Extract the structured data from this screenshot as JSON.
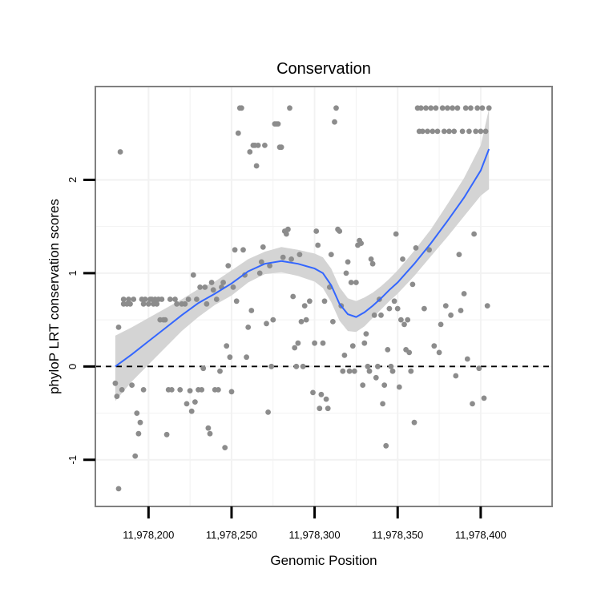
{
  "chart_data": {
    "type": "scatter",
    "title": "Conservation",
    "xlabel": "Genomic Position",
    "ylabel": "phyloP LRT conservation scores",
    "xlim": [
      11978168,
      11978443
    ],
    "ylim": [
      -1.5,
      3.0
    ],
    "x_ticks": [
      11978200,
      11978250,
      11978300,
      11978350,
      11978400
    ],
    "x_tick_labels": [
      "11,978,200",
      "11,978,250",
      "11,978,300",
      "11,978,350",
      "11,978,400"
    ],
    "y_ticks": [
      -1,
      0,
      1,
      2
    ],
    "y_tick_labels": [
      "-1",
      "0",
      "1",
      "2"
    ],
    "grid": true,
    "reference_line": {
      "y": 0,
      "style": "dashed",
      "color": "#000000"
    },
    "colors": {
      "points": "#8c8c8c",
      "smooth": "#3366ff",
      "band": "#d4d4d4",
      "panel_border": "#808080",
      "grid": "#f2f2f2"
    },
    "points": [
      [
        11978180,
        -0.18
      ],
      [
        11978181,
        -0.32
      ],
      [
        11978182,
        0.42
      ],
      [
        11978182,
        -1.31
      ],
      [
        11978183,
        2.3
      ],
      [
        11978184,
        -0.25
      ],
      [
        11978185,
        0.67
      ],
      [
        11978185,
        0.72
      ],
      [
        11978187,
        0.67
      ],
      [
        11978188,
        0.72
      ],
      [
        11978189,
        0.67
      ],
      [
        11978190,
        -0.2
      ],
      [
        11978191,
        0.72
      ],
      [
        11978192,
        -0.96
      ],
      [
        11978193,
        -0.5
      ],
      [
        11978194,
        -0.72
      ],
      [
        11978195,
        -0.6
      ],
      [
        11978196,
        0.72
      ],
      [
        11978197,
        -0.25
      ],
      [
        11978197,
        0.67
      ],
      [
        11978198,
        0.72
      ],
      [
        11978200,
        0.67
      ],
      [
        11978201,
        0.72
      ],
      [
        11978202,
        0.72
      ],
      [
        11978203,
        0.67
      ],
      [
        11978204,
        0.72
      ],
      [
        11978205,
        0.67
      ],
      [
        11978206,
        0.72
      ],
      [
        11978207,
        0.5
      ],
      [
        11978208,
        0.72
      ],
      [
        11978209,
        0.5
      ],
      [
        11978210,
        0.5
      ],
      [
        11978211,
        -0.73
      ],
      [
        11978212,
        -0.25
      ],
      [
        11978213,
        0.72
      ],
      [
        11978214,
        -0.25
      ],
      [
        11978216,
        0.72
      ],
      [
        11978217,
        0.67
      ],
      [
        11978219,
        -0.25
      ],
      [
        11978220,
        0.67
      ],
      [
        11978222,
        0.67
      ],
      [
        11978223,
        -0.4
      ],
      [
        11978224,
        0.72
      ],
      [
        11978225,
        -0.26
      ],
      [
        11978226,
        -0.48
      ],
      [
        11978227,
        0.98
      ],
      [
        11978228,
        -0.38
      ],
      [
        11978229,
        0.72
      ],
      [
        11978230,
        -0.25
      ],
      [
        11978231,
        0.85
      ],
      [
        11978232,
        -0.25
      ],
      [
        11978233,
        -0.02
      ],
      [
        11978234,
        0.85
      ],
      [
        11978235,
        0.67
      ],
      [
        11978236,
        -0.66
      ],
      [
        11978237,
        -0.72
      ],
      [
        11978238,
        0.9
      ],
      [
        11978239,
        0.82
      ],
      [
        11978240,
        -0.25
      ],
      [
        11978241,
        0.72
      ],
      [
        11978242,
        -0.25
      ],
      [
        11978243,
        -0.05
      ],
      [
        11978244,
        0.85
      ],
      [
        11978245,
        0.9
      ],
      [
        11978246,
        -0.87
      ],
      [
        11978247,
        0.22
      ],
      [
        11978248,
        1.08
      ],
      [
        11978249,
        0.1
      ],
      [
        11978250,
        -0.27
      ],
      [
        11978251,
        0.85
      ],
      [
        11978252,
        1.25
      ],
      [
        11978253,
        0.7
      ],
      [
        11978254,
        2.5
      ],
      [
        11978255,
        2.77
      ],
      [
        11978256,
        2.77
      ],
      [
        11978257,
        1.25
      ],
      [
        11978258,
        0.98
      ],
      [
        11978259,
        0.1
      ],
      [
        11978260,
        0.42
      ],
      [
        11978261,
        2.3
      ],
      [
        11978262,
        0.6
      ],
      [
        11978263,
        2.37
      ],
      [
        11978264,
        2.37
      ],
      [
        11978265,
        2.15
      ],
      [
        11978266,
        2.37
      ],
      [
        11978267,
        1.0
      ],
      [
        11978268,
        1.12
      ],
      [
        11978269,
        1.28
      ],
      [
        11978270,
        2.37
      ],
      [
        11978271,
        0.46
      ],
      [
        11978272,
        -0.49
      ],
      [
        11978273,
        1.08
      ],
      [
        11978274,
        0.0
      ],
      [
        11978275,
        0.5
      ],
      [
        11978276,
        2.6
      ],
      [
        11978277,
        2.6
      ],
      [
        11978278,
        2.6
      ],
      [
        11978279,
        2.35
      ],
      [
        11978280,
        2.35
      ],
      [
        11978281,
        1.17
      ],
      [
        11978282,
        1.45
      ],
      [
        11978283,
        1.42
      ],
      [
        11978284,
        1.47
      ],
      [
        11978285,
        2.77
      ],
      [
        11978286,
        1.15
      ],
      [
        11978287,
        0.75
      ],
      [
        11978288,
        0.2
      ],
      [
        11978289,
        0.0
      ],
      [
        11978290,
        0.25
      ],
      [
        11978291,
        1.2
      ],
      [
        11978292,
        0.48
      ],
      [
        11978293,
        0.0
      ],
      [
        11978294,
        0.65
      ],
      [
        11978295,
        0.5
      ],
      [
        11978297,
        0.7
      ],
      [
        11978299,
        -0.28
      ],
      [
        11978300,
        0.25
      ],
      [
        11978301,
        1.45
      ],
      [
        11978302,
        1.3
      ],
      [
        11978303,
        -0.45
      ],
      [
        11978304,
        -0.3
      ],
      [
        11978305,
        0.25
      ],
      [
        11978306,
        0.7
      ],
      [
        11978307,
        -0.35
      ],
      [
        11978308,
        -0.45
      ],
      [
        11978309,
        0.85
      ],
      [
        11978310,
        1.2
      ],
      [
        11978311,
        0.48
      ],
      [
        11978312,
        2.62
      ],
      [
        11978313,
        2.77
      ],
      [
        11978314,
        1.47
      ],
      [
        11978315,
        1.45
      ],
      [
        11978316,
        0.65
      ],
      [
        11978317,
        -0.05
      ],
      [
        11978318,
        0.12
      ],
      [
        11978319,
        1.0
      ],
      [
        11978320,
        1.12
      ],
      [
        11978321,
        -0.05
      ],
      [
        11978322,
        0.9
      ],
      [
        11978323,
        0.22
      ],
      [
        11978324,
        -0.05
      ],
      [
        11978325,
        0.9
      ],
      [
        11978326,
        1.3
      ],
      [
        11978327,
        1.35
      ],
      [
        11978328,
        1.32
      ],
      [
        11978329,
        -0.2
      ],
      [
        11978330,
        0.25
      ],
      [
        11978331,
        0.35
      ],
      [
        11978332,
        0.0
      ],
      [
        11978333,
        -0.05
      ],
      [
        11978334,
        1.15
      ],
      [
        11978335,
        1.1
      ],
      [
        11978336,
        0.55
      ],
      [
        11978337,
        -0.12
      ],
      [
        11978338,
        0.0
      ],
      [
        11978339,
        0.72
      ],
      [
        11978340,
        0.55
      ],
      [
        11978341,
        -0.4
      ],
      [
        11978342,
        -0.2
      ],
      [
        11978343,
        -0.85
      ],
      [
        11978344,
        0.18
      ],
      [
        11978345,
        0.62
      ],
      [
        11978346,
        0.0
      ],
      [
        11978347,
        -0.05
      ],
      [
        11978348,
        0.7
      ],
      [
        11978349,
        1.42
      ],
      [
        11978350,
        0.62
      ],
      [
        11978351,
        -0.22
      ],
      [
        11978352,
        0.5
      ],
      [
        11978353,
        1.15
      ],
      [
        11978354,
        0.45
      ],
      [
        11978355,
        0.18
      ],
      [
        11978356,
        0.5
      ],
      [
        11978357,
        0.15
      ],
      [
        11978358,
        -0.05
      ],
      [
        11978359,
        0.88
      ],
      [
        11978360,
        -0.6
      ],
      [
        11978361,
        1.27
      ],
      [
        11978362,
        2.77
      ],
      [
        11978363,
        2.52
      ],
      [
        11978364,
        2.77
      ],
      [
        11978365,
        2.52
      ],
      [
        11978366,
        0.62
      ],
      [
        11978367,
        2.77
      ],
      [
        11978368,
        2.52
      ],
      [
        11978369,
        1.25
      ],
      [
        11978370,
        2.77
      ],
      [
        11978371,
        2.52
      ],
      [
        11978372,
        0.22
      ],
      [
        11978373,
        2.77
      ],
      [
        11978374,
        2.52
      ],
      [
        11978375,
        0.15
      ],
      [
        11978376,
        0.45
      ],
      [
        11978377,
        2.77
      ],
      [
        11978378,
        2.52
      ],
      [
        11978379,
        0.65
      ],
      [
        11978380,
        2.77
      ],
      [
        11978381,
        2.52
      ],
      [
        11978382,
        0.55
      ],
      [
        11978383,
        2.77
      ],
      [
        11978384,
        2.52
      ],
      [
        11978385,
        -0.1
      ],
      [
        11978386,
        2.77
      ],
      [
        11978387,
        1.2
      ],
      [
        11978388,
        0.6
      ],
      [
        11978389,
        2.52
      ],
      [
        11978390,
        0.78
      ],
      [
        11978391,
        2.77
      ],
      [
        11978392,
        0.08
      ],
      [
        11978393,
        2.52
      ],
      [
        11978394,
        2.77
      ],
      [
        11978395,
        -0.4
      ],
      [
        11978396,
        1.42
      ],
      [
        11978397,
        2.52
      ],
      [
        11978398,
        2.77
      ],
      [
        11978399,
        -0.02
      ],
      [
        11978400,
        2.52
      ],
      [
        11978401,
        2.77
      ],
      [
        11978402,
        -0.34
      ],
      [
        11978403,
        2.52
      ],
      [
        11978404,
        0.65
      ],
      [
        11978405,
        2.77
      ]
    ],
    "smooth": {
      "x": [
        11978180,
        11978190,
        11978200,
        11978210,
        11978220,
        11978230,
        11978240,
        11978250,
        11978260,
        11978270,
        11978280,
        11978290,
        11978300,
        11978305,
        11978310,
        11978315,
        11978320,
        11978325,
        11978330,
        11978335,
        11978340,
        11978345,
        11978350,
        11978360,
        11978370,
        11978380,
        11978390,
        11978400,
        11978405
      ],
      "y": [
        0.0,
        0.13,
        0.27,
        0.41,
        0.55,
        0.68,
        0.78,
        0.89,
        1.02,
        1.1,
        1.13,
        1.1,
        1.05,
        1.0,
        0.87,
        0.67,
        0.56,
        0.53,
        0.58,
        0.65,
        0.73,
        0.82,
        0.9,
        1.1,
        1.32,
        1.56,
        1.81,
        2.1,
        2.33
      ],
      "lower": [
        -0.37,
        -0.16,
        0.02,
        0.2,
        0.38,
        0.53,
        0.66,
        0.76,
        0.9,
        0.99,
        1.01,
        0.97,
        0.91,
        0.84,
        0.69,
        0.49,
        0.38,
        0.37,
        0.43,
        0.52,
        0.61,
        0.7,
        0.78,
        0.97,
        1.18,
        1.39,
        1.61,
        1.83,
        1.9
      ],
      "upper": [
        0.33,
        0.42,
        0.52,
        0.62,
        0.72,
        0.83,
        0.91,
        1.03,
        1.15,
        1.23,
        1.28,
        1.25,
        1.21,
        1.17,
        1.05,
        0.85,
        0.73,
        0.7,
        0.74,
        0.79,
        0.86,
        0.94,
        1.03,
        1.24,
        1.47,
        1.74,
        2.02,
        2.37,
        2.76
      ]
    }
  }
}
